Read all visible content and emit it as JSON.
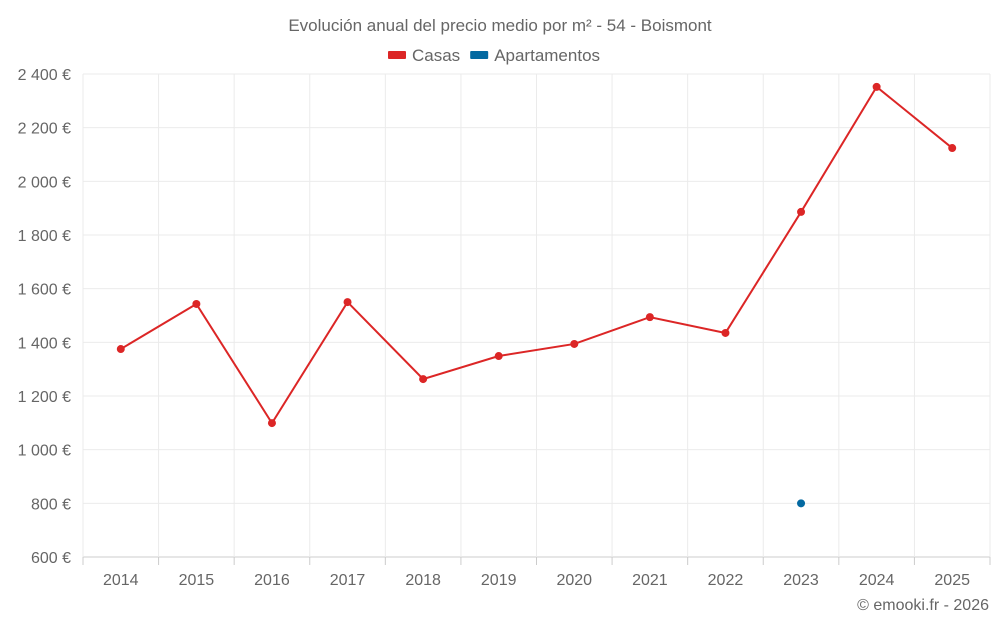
{
  "chart_data": {
    "type": "line",
    "title": "Evolución anual del precio medio por m² - 54 - Boismont",
    "categories": [
      "2014",
      "2015",
      "2016",
      "2017",
      "2018",
      "2019",
      "2020",
      "2021",
      "2022",
      "2023",
      "2024",
      "2025"
    ],
    "series": [
      {
        "name": "Casas",
        "color": "#dc2626",
        "values": [
          1375,
          1543,
          1099,
          1550,
          1263,
          1349,
          1394,
          1494,
          1435,
          1886,
          2352,
          2124
        ]
      },
      {
        "name": "Apartamentos",
        "color": "#0369a1",
        "values": [
          null,
          null,
          null,
          null,
          null,
          null,
          null,
          null,
          null,
          800,
          null,
          null
        ]
      }
    ],
    "ylim": [
      600,
      2400
    ],
    "yticks": [
      600,
      800,
      1000,
      1200,
      1400,
      1600,
      1800,
      2000,
      2200,
      2400
    ],
    "ytick_labels": [
      "600 €",
      "800 €",
      "1 000 €",
      "1 200 €",
      "1 400 €",
      "1 600 €",
      "1 800 €",
      "2 000 €",
      "2 200 €",
      "2 400 €"
    ],
    "xlabel": "",
    "ylabel": "",
    "grid": true,
    "legend_position": "top-center",
    "credit": "© emooki.fr - 2026"
  }
}
